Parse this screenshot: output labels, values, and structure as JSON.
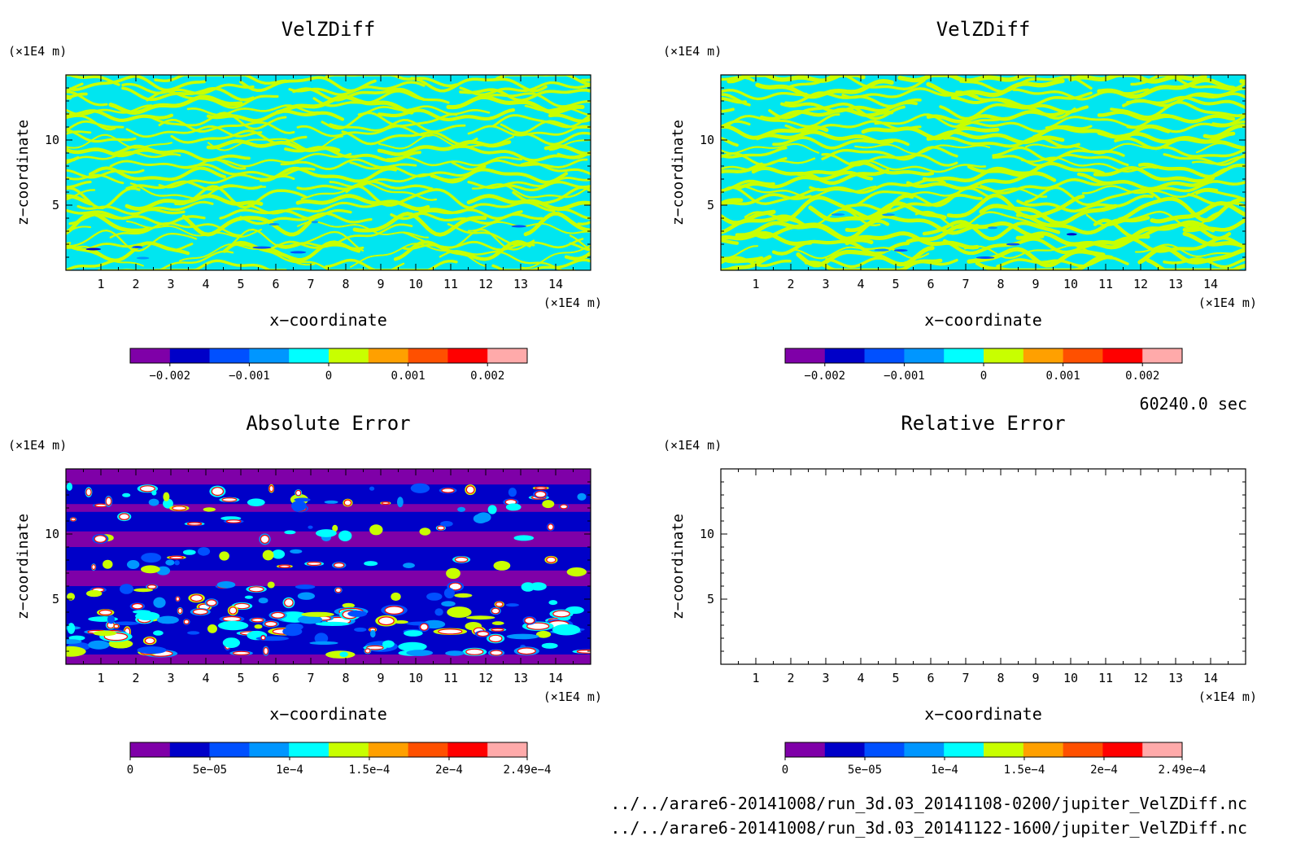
{
  "time_label": "60240.0 sec",
  "file_paths": [
    "../../arare6-20141008/run_3d.03_20141108-0200/jupiter_VelZDiff.nc",
    "../../arare6-20141008/run_3d.03_20141122-1600/jupiter_VelZDiff.nc"
  ],
  "colorbar_colors": [
    "#7f00a8",
    "#0000c8",
    "#0050ff",
    "#0096ff",
    "#00ffff",
    "#c8ff00",
    "#ffa000",
    "#ff5000",
    "#ff0000",
    "#ffaaaa"
  ],
  "colors": {
    "axis": "#000000",
    "fill_low": "#00e6f0",
    "fill_high": "#c8ff00"
  },
  "chart_data": [
    {
      "type": "heatmap",
      "title": "VelZDiff",
      "xlabel": "x−coordinate",
      "ylabel": "z−coordinate",
      "x_unit": "(×1E4 m)",
      "y_unit": "(×1E4 m)",
      "xlim": [
        0,
        15
      ],
      "ylim": [
        0,
        15
      ],
      "xticks": [
        "1",
        "2",
        "3",
        "4",
        "5",
        "6",
        "7",
        "8",
        "9",
        "10",
        "11",
        "12",
        "13",
        "14"
      ],
      "yticks": [
        "5",
        "10"
      ],
      "colorbar_range": [
        -0.0025,
        0.0025
      ],
      "colorbar_ticks": [
        "−0.002",
        "−0.001",
        "0",
        "0.001",
        "0.002"
      ],
      "pattern": "banded"
    },
    {
      "type": "heatmap",
      "title": "VelZDiff",
      "xlabel": "x−coordinate",
      "ylabel": "z−coordinate",
      "x_unit": "(×1E4 m)",
      "y_unit": "(×1E4 m)",
      "xlim": [
        0,
        15
      ],
      "ylim": [
        0,
        15
      ],
      "xticks": [
        "1",
        "2",
        "3",
        "4",
        "5",
        "6",
        "7",
        "8",
        "9",
        "10",
        "11",
        "12",
        "13",
        "14"
      ],
      "yticks": [
        "5",
        "10"
      ],
      "colorbar_range": [
        -0.0025,
        0.0025
      ],
      "colorbar_ticks": [
        "−0.002",
        "−0.001",
        "0",
        "0.001",
        "0.002"
      ],
      "pattern": "banded"
    },
    {
      "type": "heatmap",
      "title": "Absolute Error",
      "xlabel": "x−coordinate",
      "ylabel": "z−coordinate",
      "x_unit": "(×1E4 m)",
      "y_unit": "(×1E4 m)",
      "xlim": [
        0,
        15
      ],
      "ylim": [
        0,
        15
      ],
      "xticks": [
        "1",
        "2",
        "3",
        "4",
        "5",
        "6",
        "7",
        "8",
        "9",
        "10",
        "11",
        "12",
        "13",
        "14"
      ],
      "yticks": [
        "5",
        "10"
      ],
      "colorbar_range": [
        0,
        0.000249
      ],
      "colorbar_ticks": [
        "0",
        "5e−05",
        "1e−4",
        "1.5e−4",
        "2e−4",
        "2.49e−4"
      ],
      "pattern": "error"
    },
    {
      "type": "heatmap",
      "title": "Relative Error",
      "xlabel": "x−coordinate",
      "ylabel": "z−coordinate",
      "x_unit": "(×1E4 m)",
      "y_unit": "(×1E4 m)",
      "xlim": [
        0,
        15
      ],
      "ylim": [
        0,
        15
      ],
      "xticks": [
        "1",
        "2",
        "3",
        "4",
        "5",
        "6",
        "7",
        "8",
        "9",
        "10",
        "11",
        "12",
        "13",
        "14"
      ],
      "yticks": [
        "5",
        "10"
      ],
      "colorbar_range": [
        0,
        0.000249
      ],
      "colorbar_ticks": [
        "0",
        "5e−05",
        "1e−4",
        "1.5e−4",
        "2e−4",
        "2.49e−4"
      ],
      "pattern": "empty"
    }
  ]
}
